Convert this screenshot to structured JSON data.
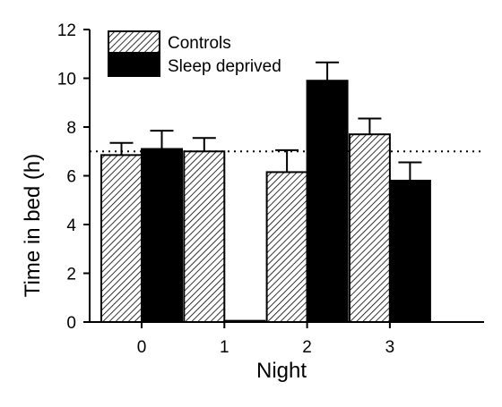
{
  "chart_data": {
    "type": "bar",
    "title": "",
    "xlabel": "Night",
    "ylabel": "Time in bed (h)",
    "categories": [
      "0",
      "1",
      "2",
      "3"
    ],
    "ylim": [
      0,
      12
    ],
    "yticks": [
      "0",
      "2",
      "4",
      "6",
      "8",
      "10",
      "12"
    ],
    "reference_line": {
      "y": 7,
      "style": "dotted"
    },
    "legend_position": "top-left",
    "grid": false,
    "series": [
      {
        "name": "Controls",
        "fill": "hatched",
        "color": "#000000",
        "values": [
          6.85,
          7.0,
          6.15,
          7.7
        ],
        "errors": [
          0.5,
          0.55,
          0.9,
          0.65
        ]
      },
      {
        "name": "Sleep deprived",
        "fill": "solid",
        "color": "#000000",
        "values": [
          7.1,
          0.05,
          9.9,
          5.8
        ],
        "errors": [
          0.75,
          0.0,
          0.75,
          0.75
        ]
      }
    ]
  }
}
